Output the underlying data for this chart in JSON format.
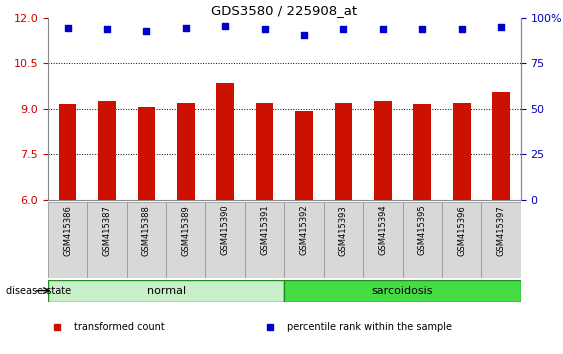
{
  "title": "GDS3580 / 225908_at",
  "samples": [
    "GSM415386",
    "GSM415387",
    "GSM415388",
    "GSM415389",
    "GSM415390",
    "GSM415391",
    "GSM415392",
    "GSM415393",
    "GSM415394",
    "GSM415395",
    "GSM415396",
    "GSM415397"
  ],
  "red_values": [
    9.15,
    9.25,
    9.05,
    9.2,
    9.85,
    9.2,
    8.92,
    9.2,
    9.25,
    9.15,
    9.2,
    9.55
  ],
  "blue_values": [
    11.65,
    11.63,
    11.55,
    11.65,
    11.73,
    11.62,
    11.42,
    11.63,
    11.62,
    11.62,
    11.63,
    11.68
  ],
  "ylim_left": [
    6,
    12
  ],
  "ylim_right": [
    0,
    100
  ],
  "yticks_left": [
    6,
    7.5,
    9,
    10.5,
    12
  ],
  "yticks_right": [
    0,
    25,
    50,
    75,
    100
  ],
  "groups": [
    {
      "label": "normal",
      "start": 0,
      "end": 6,
      "color": "#C8F0C8"
    },
    {
      "label": "sarcoidosis",
      "start": 6,
      "end": 12,
      "color": "#44DD44"
    }
  ],
  "bar_color": "#CC1100",
  "dot_color": "#0000CC",
  "plot_bg": "#FFFFFF",
  "legend_items": [
    {
      "color": "#CC1100",
      "label": "transformed count"
    },
    {
      "color": "#0000CC",
      "label": "percentile rank within the sample"
    }
  ],
  "disease_state_label": "disease state",
  "left_yaxis_color": "#CC0000",
  "right_yaxis_color": "#0000BB"
}
